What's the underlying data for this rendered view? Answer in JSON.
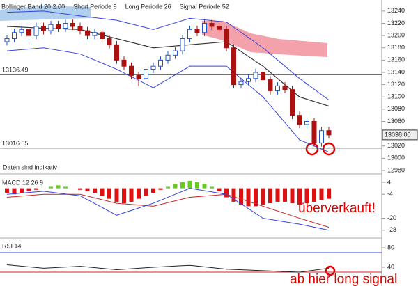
{
  "chart_data": [
    {
      "type": "candlestick",
      "header": [
        "Bollinger Band 20 2.00",
        "Short Periode 9",
        "Long Periode 26",
        "Signal Periode 52"
      ],
      "note": "Daten sind indikativ",
      "open": [
        13190,
        13195,
        13205,
        13210,
        13200,
        13215,
        13208,
        13218,
        13212,
        13220,
        13215,
        13208,
        13200,
        13205,
        13195,
        13185,
        13160,
        13150,
        13135,
        13130,
        13145,
        13150,
        13160,
        13168,
        13175,
        13195,
        13210,
        13205,
        13220,
        13215,
        13210,
        13180,
        13120,
        13125,
        13130,
        13140,
        13128,
        13110,
        13118,
        13112,
        13070,
        13055,
        13060,
        13025,
        13045
      ],
      "high": [
        13201,
        13211,
        13216,
        13216,
        13221,
        13221,
        13224,
        13224,
        13226,
        13226,
        13221,
        13214,
        13211,
        13211,
        13201,
        13191,
        13166,
        13156,
        13141,
        13151,
        13156,
        13166,
        13174,
        13181,
        13201,
        13216,
        13216,
        13226,
        13226,
        13221,
        13216,
        13186,
        13131,
        13136,
        13146,
        13146,
        13134,
        13124,
        13124,
        13118,
        13076,
        13066,
        13066,
        13051,
        13051
      ],
      "low": [
        13184,
        13189,
        13199,
        13194,
        13194,
        13202,
        13202,
        13206,
        13206,
        13209,
        13202,
        13194,
        13194,
        13189,
        13179,
        13154,
        13144,
        13129,
        13118,
        13124,
        13139,
        13144,
        13154,
        13162,
        13169,
        13189,
        13199,
        13199,
        13209,
        13204,
        13174,
        13114,
        13114,
        13119,
        13124,
        13122,
        13104,
        13104,
        13106,
        13064,
        13049,
        13049,
        13019,
        13019,
        13032
      ],
      "close": [
        13195,
        13205,
        13210,
        13200,
        13215,
        13208,
        13218,
        13212,
        13220,
        13215,
        13208,
        13200,
        13205,
        13195,
        13185,
        13160,
        13150,
        13135,
        13130,
        13145,
        13150,
        13160,
        13168,
        13175,
        13195,
        13210,
        13205,
        13220,
        13215,
        13210,
        13180,
        13120,
        13125,
        13130,
        13140,
        13128,
        13110,
        13118,
        13112,
        13070,
        13055,
        13060,
        13025,
        13045,
        13038
      ],
      "overlay_x": [
        0,
        5,
        10,
        15,
        20,
        25,
        30,
        35,
        40,
        44
      ],
      "upper_band": [
        13238,
        13240,
        13232,
        13225,
        13210,
        13228,
        13222,
        13180,
        13130,
        13095
      ],
      "lower_band": [
        13175,
        13180,
        13170,
        13145,
        13115,
        13150,
        13150,
        13100,
        13030,
        13010
      ],
      "moving_average": [
        13215,
        13212,
        13210,
        13195,
        13180,
        13185,
        13190,
        13150,
        13100,
        13085
      ],
      "levels": [
        13136.49,
        13016.55
      ],
      "last_price": {
        "value": 13038,
        "label": "13038.00"
      },
      "up_color": "#2255cc",
      "down_color": "#aa1111",
      "ylim": [
        12980,
        13258
      ],
      "yticks": [
        12980,
        13000,
        13020,
        13040,
        13060,
        13080,
        13100,
        13120,
        13140,
        13160,
        13180,
        13200,
        13220,
        13240
      ]
    },
    {
      "type": "bar",
      "title": "MACD 12 26 9",
      "values": [
        -3,
        -4,
        -3,
        -2,
        -1,
        0,
        1,
        2,
        1,
        0,
        -1,
        -2,
        -3,
        -5,
        -7,
        -9,
        -10,
        -9,
        -7,
        -5,
        -3,
        -1,
        1,
        3,
        4,
        5,
        4,
        3,
        1,
        -2,
        -6,
        -9,
        -11,
        -12,
        -12,
        -11,
        -10,
        -9,
        -9,
        -10,
        -11,
        -10,
        -9,
        -8,
        -7
      ],
      "line_x": [
        0,
        5,
        10,
        15,
        20,
        25,
        30,
        35,
        40,
        44
      ],
      "macd": [
        -4,
        -2,
        -5,
        -18,
        -10,
        0,
        -4,
        -20,
        -24,
        -28
      ],
      "signal": [
        -6,
        -4,
        -4,
        -10,
        -12,
        -6,
        -4,
        -12,
        -20,
        -26
      ],
      "pos_color": "#66cc22",
      "neg_color": "#dd1111",
      "annotation": "überverkauft!",
      "ylim": [
        -32.3,
        6.8
      ],
      "yticks": [
        4,
        -4,
        -20,
        -28
      ]
    },
    {
      "type": "line",
      "title": "RSI 14",
      "x": [
        0,
        5,
        10,
        15,
        20,
        25,
        30,
        35,
        40,
        44
      ],
      "values": [
        45,
        38,
        42,
        35,
        40,
        44,
        36,
        33,
        30,
        38
      ],
      "levels": [
        70,
        30
      ],
      "annotation": "ab hier long signal",
      "ylim": [
        1.4,
        94.3
      ],
      "yticks": [
        80,
        40
      ]
    }
  ]
}
